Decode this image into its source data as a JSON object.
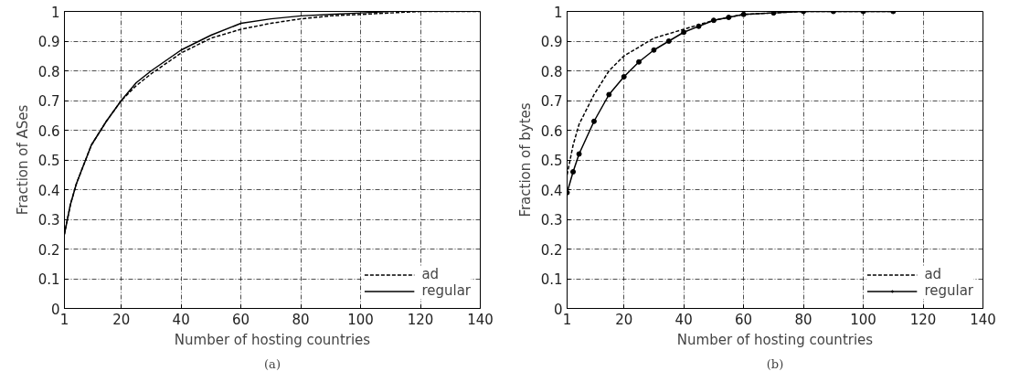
{
  "chart_data": [
    {
      "type": "line",
      "xlabel": "Number of hosting countries",
      "ylabel": "Fraction of ASes",
      "annotations": [
        "(a)"
      ],
      "xlim": [
        1,
        140
      ],
      "ylim": [
        0,
        1
      ],
      "xticks": [
        1,
        20,
        40,
        60,
        80,
        100,
        120,
        140
      ],
      "yticks": [
        0,
        0.1,
        0.2,
        0.3,
        0.4,
        0.5,
        0.6,
        0.7,
        0.8,
        0.9,
        1
      ],
      "grid": true,
      "legend": "bottom right",
      "series": [
        {
          "name": "ad",
          "color": "#000000",
          "line_style": "dashed",
          "marker": "none",
          "x": [
            1,
            3,
            5,
            10,
            15,
            20,
            25,
            30,
            40,
            50,
            60,
            70,
            80,
            90,
            100,
            110,
            120,
            130,
            140
          ],
          "values": [
            0.25,
            0.35,
            0.42,
            0.55,
            0.63,
            0.7,
            0.75,
            0.79,
            0.86,
            0.91,
            0.94,
            0.96,
            0.975,
            0.985,
            0.99,
            0.995,
            1.0,
            1.0,
            1.0
          ]
        },
        {
          "name": "regular",
          "color": "#000000",
          "line_style": "solid",
          "marker": "none",
          "x": [
            1,
            3,
            5,
            10,
            15,
            20,
            25,
            30,
            40,
            50,
            60,
            70,
            80,
            90,
            100,
            110
          ],
          "values": [
            0.25,
            0.35,
            0.42,
            0.55,
            0.63,
            0.7,
            0.76,
            0.8,
            0.87,
            0.92,
            0.96,
            0.975,
            0.985,
            0.99,
            0.995,
            1.0
          ]
        }
      ]
    },
    {
      "type": "line",
      "xlabel": "Number of hosting countries",
      "ylabel": "Fraction of bytes",
      "annotations": [
        "(b)"
      ],
      "xlim": [
        1,
        140
      ],
      "ylim": [
        0,
        1
      ],
      "xticks": [
        1,
        20,
        40,
        60,
        80,
        100,
        120,
        140
      ],
      "yticks": [
        0,
        0.1,
        0.2,
        0.3,
        0.4,
        0.5,
        0.6,
        0.7,
        0.8,
        0.9,
        1
      ],
      "grid": true,
      "legend": "bottom right",
      "series": [
        {
          "name": "ad",
          "color": "#000000",
          "line_style": "dashed",
          "marker": "none",
          "x": [
            1,
            3,
            5,
            10,
            15,
            20,
            25,
            30,
            40,
            50,
            60,
            70,
            80,
            90,
            100,
            110
          ],
          "values": [
            0.45,
            0.55,
            0.62,
            0.72,
            0.8,
            0.85,
            0.88,
            0.91,
            0.94,
            0.97,
            0.99,
            0.995,
            1.0,
            1.0,
            1.0,
            1.0
          ]
        },
        {
          "name": "regular",
          "color": "#000000",
          "line_style": "solid",
          "marker": "circle",
          "x": [
            1,
            3,
            5,
            10,
            15,
            20,
            25,
            30,
            35,
            40,
            45,
            50,
            55,
            60,
            70,
            80,
            90,
            100,
            110
          ],
          "values": [
            0.39,
            0.46,
            0.52,
            0.63,
            0.72,
            0.78,
            0.83,
            0.87,
            0.9,
            0.93,
            0.95,
            0.97,
            0.98,
            0.99,
            0.995,
            1.0,
            1.0,
            1.0,
            1.0
          ]
        }
      ]
    }
  ]
}
